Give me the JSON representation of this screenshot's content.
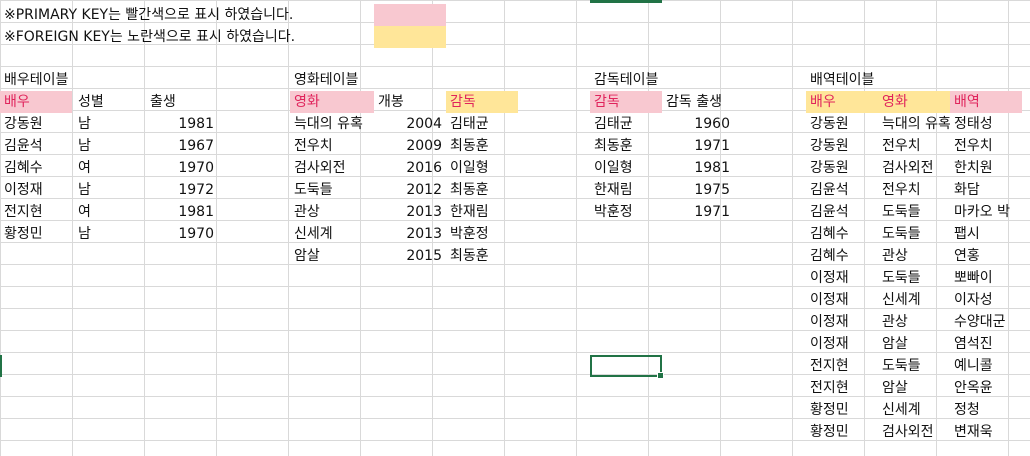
{
  "notes": {
    "primary_key": "※PRIMARY KEY는 빨간색으로 표시 하였습니다.",
    "foreign_key": "※FOREIGN KEY는 노란색으로 표시 하였습니다.",
    "primary_color": "#f8c8d0",
    "foreign_color": "#ffe699"
  },
  "actor_table": {
    "title": "배우테이블",
    "headers": [
      "배우",
      "성별",
      "출생"
    ],
    "rows": [
      [
        "강동원",
        "남",
        "1981"
      ],
      [
        "김윤석",
        "남",
        "1967"
      ],
      [
        "김혜수",
        "여",
        "1970"
      ],
      [
        "이정재",
        "남",
        "1972"
      ],
      [
        "전지현",
        "여",
        "1981"
      ],
      [
        "황정민",
        "남",
        "1970"
      ]
    ]
  },
  "movie_table": {
    "title": "영화테이블",
    "headers": [
      "영화",
      "개봉",
      "감독"
    ],
    "rows": [
      [
        "늑대의 유혹",
        "2004",
        "김태균"
      ],
      [
        "전우치",
        "2009",
        "최동훈"
      ],
      [
        "검사외전",
        "2016",
        "이일형"
      ],
      [
        "도둑들",
        "2012",
        "최동훈"
      ],
      [
        "관상",
        "2013",
        "한재림"
      ],
      [
        "신세계",
        "2013",
        "박훈정"
      ],
      [
        "암살",
        "2015",
        "최동훈"
      ]
    ]
  },
  "director_table": {
    "title": "감독테이블",
    "headers": [
      "감독",
      "감독 출생"
    ],
    "rows": [
      [
        "김태균",
        "1960"
      ],
      [
        "최동훈",
        "1971"
      ],
      [
        "이일형",
        "1981"
      ],
      [
        "한재림",
        "1975"
      ],
      [
        "박훈정",
        "1971"
      ]
    ]
  },
  "role_table": {
    "title": "배역테이블",
    "headers": [
      "배우",
      "영화",
      "배역"
    ],
    "rows": [
      [
        "강동원",
        "늑대의 유혹",
        "정태성"
      ],
      [
        "강동원",
        "전우치",
        "전우치"
      ],
      [
        "강동원",
        "검사외전",
        "한치원"
      ],
      [
        "김윤석",
        "전우치",
        "화담"
      ],
      [
        "김윤석",
        "도둑들",
        "마카오 박"
      ],
      [
        "김혜수",
        "도둑들",
        "팹시"
      ],
      [
        "김혜수",
        "관상",
        "연홍"
      ],
      [
        "이정재",
        "도둑들",
        "뽀빠이"
      ],
      [
        "이정재",
        "신세계",
        "이자성"
      ],
      [
        "이정재",
        "관상",
        "수양대군"
      ],
      [
        "이정재",
        "암살",
        "염석진"
      ],
      [
        "전지현",
        "도둑들",
        "예니콜"
      ],
      [
        "전지현",
        "암살",
        "안옥윤"
      ],
      [
        "황정민",
        "신세계",
        "정청"
      ],
      [
        "황정민",
        "검사외전",
        "변재욱"
      ]
    ]
  }
}
